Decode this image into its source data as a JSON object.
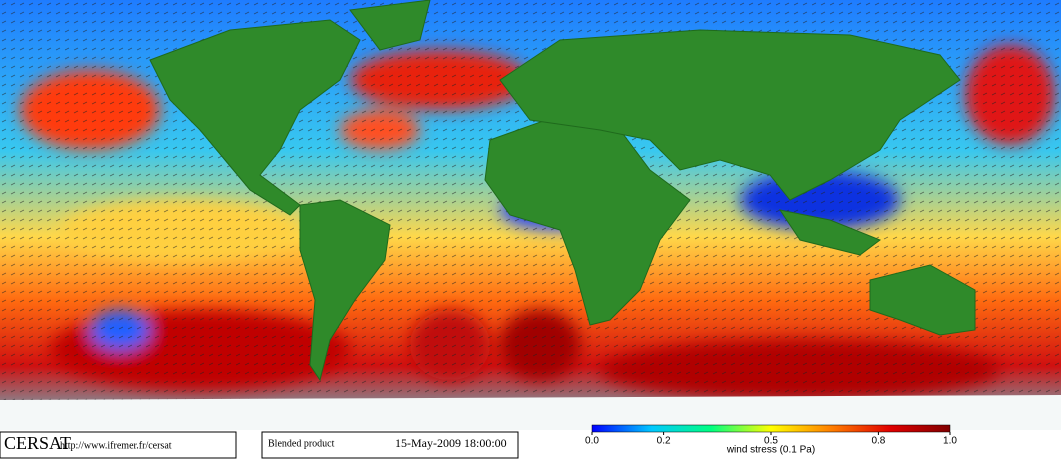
{
  "header": {
    "logo": "CERSAT",
    "url": "http://www.ifremer.fr/cersat"
  },
  "product": {
    "label": "Blended product",
    "date": "15-May-2009 18:00:00"
  },
  "colorbar": {
    "label": "wind stress (0.1 Pa)",
    "lim": [
      0,
      1
    ],
    "ticks": [
      {
        "value": 0,
        "label": "0.0"
      },
      0.2,
      0.5,
      0.8,
      {
        "value": 1,
        "label": "1.0"
      }
    ],
    "colors": [
      "#0000ff",
      "#00c8ff",
      "#00ff80",
      "#ffff00",
      "#ff8000",
      "#e00000",
      "#800000"
    ]
  }
}
